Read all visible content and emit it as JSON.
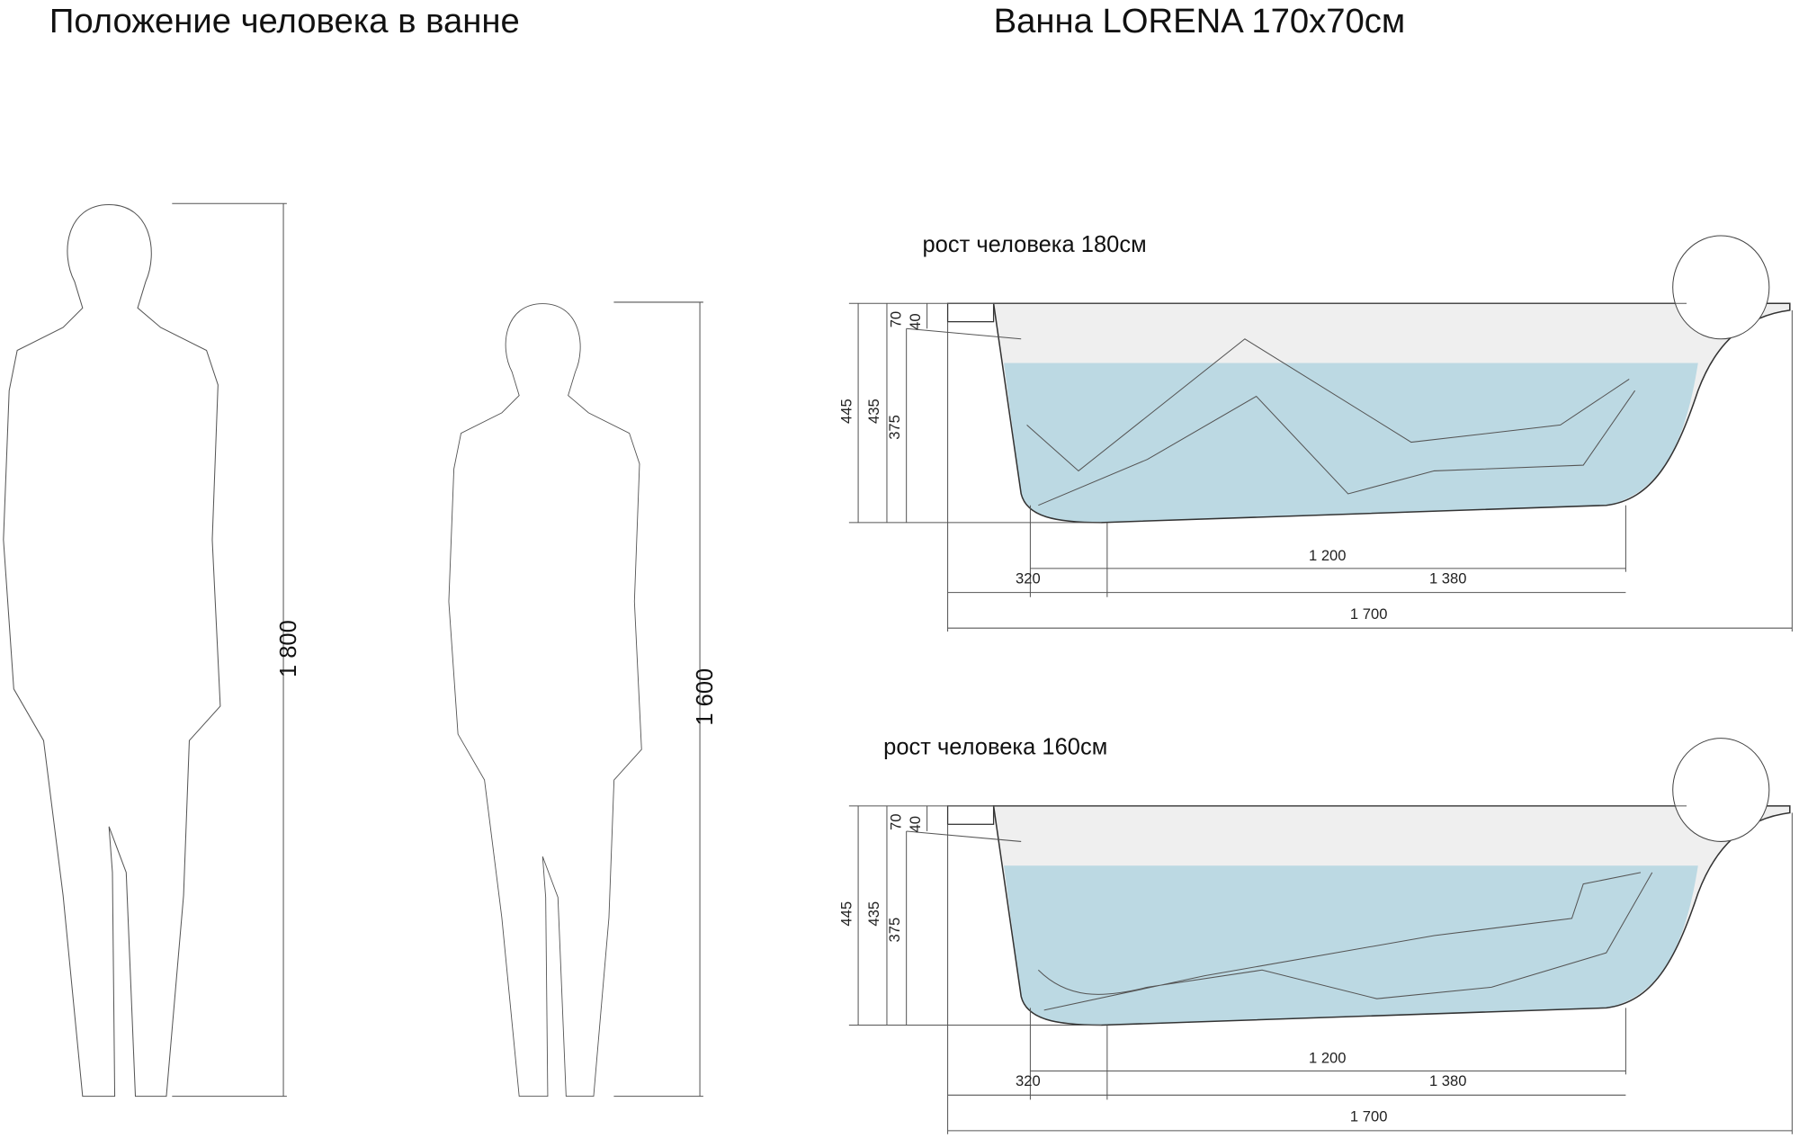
{
  "left": {
    "title": "Положение человека в ванне",
    "figures": [
      {
        "height_label": "1 800"
      },
      {
        "height_label": "1 600"
      }
    ]
  },
  "right": {
    "title": "Ванна   LORENA 170x70см",
    "views": [
      {
        "caption": "рост человека 180см",
        "dimensions": [
          "70",
          "40",
          "445",
          "435",
          "375",
          "1 200",
          "320",
          "1 380",
          "1 700"
        ]
      },
      {
        "caption": "рост человека 160см",
        "dimensions": [
          "70",
          "40",
          "445",
          "435",
          "375",
          "1 200",
          "320",
          "1 380",
          "1 700"
        ]
      }
    ]
  }
}
